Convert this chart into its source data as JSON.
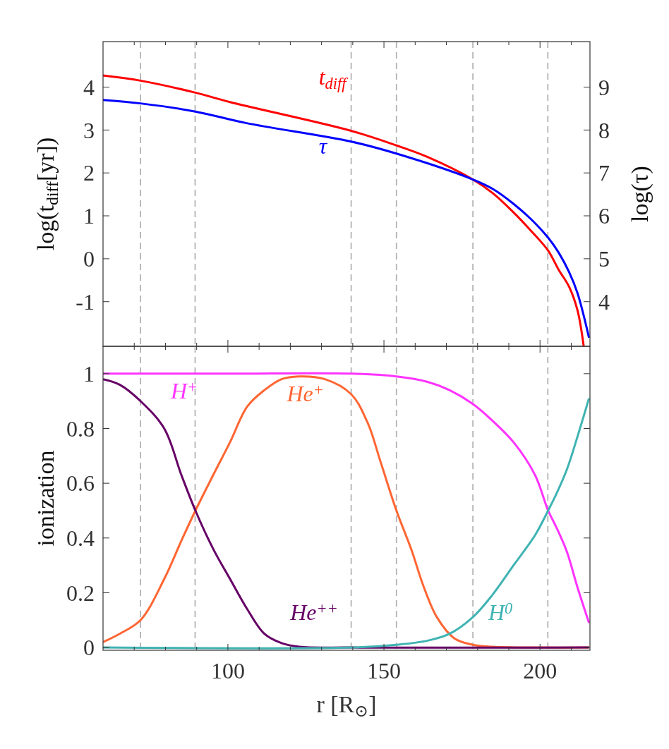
{
  "chart_data": [
    {
      "type": "line",
      "ylabel": "log(t$_{diff}$[yr])",
      "y2label": "log(τ)",
      "xlim": [
        60,
        216
      ],
      "ylim": [
        -2.04,
        5.06
      ],
      "y2lim": [
        2.96,
        10.06
      ],
      "xticks": [
        {
          "value": 70,
          "label": null
        },
        {
          "value": 80,
          "label": null
        },
        {
          "value": 90,
          "label": null
        },
        {
          "value": 100,
          "label": null
        },
        {
          "value": 110,
          "label": null
        },
        {
          "value": 120,
          "label": null
        },
        {
          "value": 130,
          "label": null
        },
        {
          "value": 140,
          "label": null
        },
        {
          "value": 150,
          "label": null
        },
        {
          "value": 160,
          "label": null
        },
        {
          "value": 170,
          "label": null
        },
        {
          "value": 180,
          "label": null
        },
        {
          "value": 190,
          "label": null
        },
        {
          "value": 200,
          "label": null
        },
        {
          "value": 210,
          "label": null
        }
      ],
      "yticks": [
        {
          "value": -1,
          "label": "-1"
        },
        0,
        1,
        2,
        3,
        4
      ],
      "y2ticks": [
        4,
        5,
        6,
        7,
        8,
        9
      ],
      "tick_labels": "y",
      "grid": false,
      "line_style": "solid",
      "marker": "none",
      "ref_lines": [
        {
          "axis": "x",
          "value": 72,
          "color": "#b3b3b3",
          "line_style": "dashed"
        },
        {
          "axis": "x",
          "value": 89.5,
          "color": "#b3b3b3",
          "line_style": "dashed"
        },
        {
          "axis": "x",
          "value": 139.5,
          "color": "#b3b3b3",
          "line_style": "dashed"
        },
        {
          "axis": "x",
          "value": 154,
          "color": "#b3b3b3",
          "line_style": "dashed"
        },
        {
          "axis": "x",
          "value": 178.5,
          "color": "#b3b3b3",
          "line_style": "dashed"
        },
        {
          "axis": "x",
          "value": 202.5,
          "color": "#b3b3b3",
          "line_style": "dashed"
        }
      ],
      "series": [
        {
          "name": "t$_{diff}$",
          "color": "#ff0000",
          "x": [
            60,
            72,
            89.6,
            100.7,
            139.5,
            154,
            164,
            178.4,
            185,
            191.5,
            197,
            202.6,
            206,
            209.3,
            212,
            214
          ],
          "values": [
            4.27,
            4.15,
            3.87,
            3.65,
            2.98,
            2.64,
            2.37,
            1.85,
            1.52,
            1.08,
            0.66,
            0.19,
            -0.26,
            -0.65,
            -1.2,
            -2.04
          ]
        },
        {
          "name": "τ",
          "color": "#0000ff",
          "axis": "y2",
          "x": [
            60,
            72,
            89.6,
            106,
            139.5,
            154,
            178.4,
            185,
            191.5,
            197,
            202.6,
            206,
            209.3,
            212,
            215.7
          ],
          "values": [
            8.7,
            8.62,
            8.43,
            8.16,
            7.73,
            7.45,
            6.85,
            6.62,
            6.28,
            5.93,
            5.49,
            5.14,
            4.69,
            4.2,
            3.16
          ]
        }
      ]
    },
    {
      "type": "line",
      "xlabel": "r [R$_{⊙}$]",
      "ylabel": "ionization",
      "xlim": [
        60,
        216
      ],
      "ylim": [
        -0.01,
        1.1
      ],
      "xticks": [
        {
          "value": 70,
          "label": null
        },
        {
          "value": 80,
          "label": null
        },
        {
          "value": 90,
          "label": null
        },
        100,
        {
          "value": 110,
          "label": null
        },
        {
          "value": 120,
          "label": null
        },
        {
          "value": 130,
          "label": null
        },
        {
          "value": 140,
          "label": null
        },
        150,
        {
          "value": 160,
          "label": null
        },
        {
          "value": 170,
          "label": null
        },
        {
          "value": 180,
          "label": null
        },
        {
          "value": 190,
          "label": null
        },
        200,
        {
          "value": 210,
          "label": null
        }
      ],
      "yticks": [
        0,
        0.2,
        0.4,
        0.6,
        0.8,
        1
      ],
      "grid": false,
      "line_style": "solid",
      "marker": "none",
      "ref_lines": [
        {
          "axis": "x",
          "value": 72,
          "color": "#b3b3b3",
          "line_style": "dashed"
        },
        {
          "axis": "x",
          "value": 89.5,
          "color": "#b3b3b3",
          "line_style": "dashed"
        },
        {
          "axis": "x",
          "value": 139.5,
          "color": "#b3b3b3",
          "line_style": "dashed"
        },
        {
          "axis": "x",
          "value": 154,
          "color": "#b3b3b3",
          "line_style": "dashed"
        },
        {
          "axis": "x",
          "value": 178.5,
          "color": "#b3b3b3",
          "line_style": "dashed"
        },
        {
          "axis": "x",
          "value": 202.5,
          "color": "#b3b3b3",
          "line_style": "dashed"
        }
      ],
      "series": [
        {
          "name": "H$^{+}$",
          "color": "#ff33ff",
          "x": [
            60,
            100,
            140,
            154,
            164,
            171,
            178.4,
            184.6,
            191.5,
            198.4,
            202.6,
            205.2,
            208.6,
            212,
            215.7
          ],
          "values": [
            1,
            1,
            1,
            0.99,
            0.97,
            0.94,
            0.89,
            0.83,
            0.75,
            0.63,
            0.5,
            0.44,
            0.35,
            0.22,
            0.09
          ]
        },
        {
          "name": "He$^{+}$",
          "color": "#ff6633",
          "x": [
            60,
            65.3,
            72,
            79.6,
            85.1,
            89.6,
            95.3,
            100.7,
            106.2,
            111.7,
            117.2,
            122.8,
            131.1,
            139.5,
            144.8,
            149,
            154,
            158.7,
            162.8,
            167,
            172.5,
            178.4,
            184.6,
            215.7
          ],
          "values": [
            0.02,
            0.05,
            0.1,
            0.25,
            0.39,
            0.5,
            0.63,
            0.75,
            0.88,
            0.94,
            0.98,
            0.99,
            0.98,
            0.925,
            0.82,
            0.675,
            0.5,
            0.36,
            0.22,
            0.11,
            0.034,
            0.01,
            0.003,
            0
          ]
        },
        {
          "name": "He$^{++}$",
          "color": "#660066",
          "x": [
            60,
            65.3,
            72,
            79.6,
            85.1,
            89.6,
            95.3,
            100.7,
            106.2,
            111.7,
            117.2,
            122.8,
            140,
            215.7
          ],
          "values": [
            0.98,
            0.96,
            0.9,
            0.8,
            0.63,
            0.5,
            0.36,
            0.25,
            0.14,
            0.05,
            0.016,
            0.003,
            0,
            0
          ]
        },
        {
          "name": "H$^{0}$",
          "color": "#40b3b3",
          "x": [
            60,
            140,
            154,
            164,
            171,
            178.4,
            184.6,
            191.5,
            198.4,
            202.6,
            205.2,
            208.6,
            212,
            215.7
          ],
          "values": [
            0,
            0,
            0.01,
            0.025,
            0.05,
            0.11,
            0.19,
            0.3,
            0.41,
            0.5,
            0.56,
            0.65,
            0.77,
            0.91
          ]
        }
      ]
    }
  ]
}
